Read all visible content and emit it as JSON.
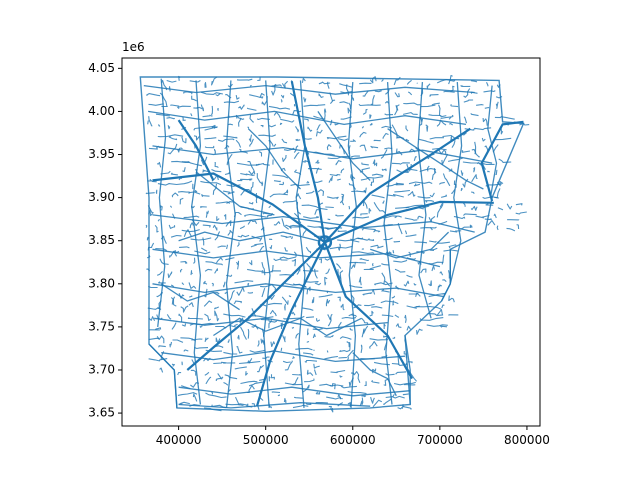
{
  "figure": {
    "background_color": "#ffffff"
  },
  "chart_data": {
    "type": "map",
    "title": "",
    "xlabel": "",
    "ylabel": "",
    "xlim": [
      335000,
      815000
    ],
    "ylim": [
      3635000,
      4062000
    ],
    "grid": false,
    "legend": false,
    "series_color": "#1f77b4",
    "x_ticks": [
      {
        "value": 400000,
        "label": "400000"
      },
      {
        "value": 500000,
        "label": "500000"
      },
      {
        "value": 600000,
        "label": "600000"
      },
      {
        "value": 700000,
        "label": "700000"
      },
      {
        "value": 800000,
        "label": "800000"
      }
    ],
    "y_ticks": [
      {
        "value": 3650000,
        "label": "3.65"
      },
      {
        "value": 3700000,
        "label": "3.70"
      },
      {
        "value": 3750000,
        "label": "3.75"
      },
      {
        "value": 3800000,
        "label": "3.80"
      },
      {
        "value": 3850000,
        "label": "3.85"
      },
      {
        "value": 3900000,
        "label": "3.90"
      },
      {
        "value": 3950000,
        "label": "3.95"
      },
      {
        "value": 4000000,
        "label": "4.00"
      },
      {
        "value": 4050000,
        "label": "4.05"
      }
    ],
    "y_offset_label": "1e6",
    "hub": [
      568000,
      3848000
    ],
    "boundary": [
      [
        360000,
        4040000
      ],
      [
        512000,
        4040000
      ],
      [
        768000,
        4036000
      ],
      [
        772000,
        3988000
      ],
      [
        796000,
        3986000
      ],
      [
        760000,
        3900000
      ],
      [
        752000,
        3860000
      ],
      [
        712000,
        3840000
      ],
      [
        712000,
        3800000
      ],
      [
        702000,
        3780000
      ],
      [
        660000,
        3740000
      ],
      [
        666000,
        3660000
      ],
      [
        620000,
        3656000
      ],
      [
        500000,
        3652000
      ],
      [
        398000,
        3656000
      ],
      [
        395000,
        3700000
      ],
      [
        366000,
        3730000
      ],
      [
        366000,
        3800000
      ],
      [
        366000,
        3900000
      ],
      [
        356000,
        4040000
      ]
    ],
    "major_roads": [
      [
        [
          568000,
          3848000
        ],
        [
          640000,
          3880000
        ],
        [
          700000,
          3895000
        ],
        [
          762000,
          3894000
        ]
      ],
      [
        [
          568000,
          3848000
        ],
        [
          520000,
          3800000
        ],
        [
          480000,
          3760000
        ],
        [
          442000,
          3728000
        ],
        [
          410000,
          3700000
        ]
      ],
      [
        [
          568000,
          3848000
        ],
        [
          620000,
          3905000
        ],
        [
          690000,
          3950000
        ],
        [
          735000,
          3980000
        ]
      ],
      [
        [
          568000,
          3848000
        ],
        [
          592000,
          3785000
        ],
        [
          640000,
          3740000
        ],
        [
          668000,
          3690000
        ]
      ],
      [
        [
          568000,
          3848000
        ],
        [
          508000,
          3892000
        ],
        [
          440000,
          3928000
        ],
        [
          370000,
          3920000
        ]
      ],
      [
        [
          568000,
          3848000
        ],
        [
          560000,
          3900000
        ],
        [
          545000,
          3960000
        ],
        [
          530000,
          4035000
        ]
      ],
      [
        [
          760000,
          3896000
        ],
        [
          748000,
          3940000
        ],
        [
          772000,
          3985000
        ],
        [
          796000,
          3988000
        ]
      ],
      [
        [
          568000,
          3848000
        ],
        [
          530000,
          3770000
        ],
        [
          505000,
          3710000
        ],
        [
          490000,
          3658000
        ]
      ],
      [
        [
          400000,
          3990000
        ],
        [
          420000,
          3960000
        ],
        [
          440000,
          3920000
        ]
      ]
    ],
    "minor_roads": [
      [
        [
          360000,
          4030000
        ],
        [
          420000,
          4022000
        ],
        [
          500000,
          4030000
        ],
        [
          580000,
          4020000
        ],
        [
          660000,
          4028000
        ],
        [
          740000,
          4022000
        ]
      ],
      [
        [
          365000,
          4000000
        ],
        [
          430000,
          3990000
        ],
        [
          510000,
          4000000
        ],
        [
          590000,
          3985000
        ],
        [
          660000,
          3995000
        ],
        [
          730000,
          3985000
        ]
      ],
      [
        [
          370000,
          3960000
        ],
        [
          440000,
          3950000
        ],
        [
          520000,
          3958000
        ],
        [
          600000,
          3945000
        ],
        [
          680000,
          3955000
        ],
        [
          760000,
          3940000
        ]
      ],
      [
        [
          370000,
          3880000
        ],
        [
          450000,
          3870000
        ],
        [
          520000,
          3878000
        ],
        [
          610000,
          3865000
        ],
        [
          690000,
          3872000
        ],
        [
          740000,
          3860000
        ]
      ],
      [
        [
          370000,
          3840000
        ],
        [
          440000,
          3830000
        ],
        [
          500000,
          3838000
        ],
        [
          560000,
          3830000
        ],
        [
          640000,
          3835000
        ],
        [
          700000,
          3820000
        ]
      ],
      [
        [
          370000,
          3800000
        ],
        [
          430000,
          3790000
        ],
        [
          500000,
          3800000
        ],
        [
          580000,
          3790000
        ],
        [
          650000,
          3795000
        ],
        [
          705000,
          3785000
        ]
      ],
      [
        [
          372000,
          3760000
        ],
        [
          430000,
          3752000
        ],
        [
          500000,
          3760000
        ],
        [
          570000,
          3748000
        ],
        [
          640000,
          3755000
        ]
      ],
      [
        [
          380000,
          3720000
        ],
        [
          440000,
          3712000
        ],
        [
          510000,
          3722000
        ],
        [
          580000,
          3710000
        ],
        [
          660000,
          3716000
        ]
      ],
      [
        [
          400000,
          3680000
        ],
        [
          460000,
          3672000
        ],
        [
          530000,
          3680000
        ],
        [
          600000,
          3670000
        ],
        [
          666000,
          3676000
        ]
      ],
      [
        [
          400000,
          3660000
        ],
        [
          460000,
          3656000
        ],
        [
          540000,
          3662000
        ],
        [
          620000,
          3658000
        ]
      ],
      [
        [
          380000,
          4038000
        ],
        [
          385000,
          3970000
        ],
        [
          378000,
          3900000
        ],
        [
          384000,
          3820000
        ],
        [
          376000,
          3750000
        ]
      ],
      [
        [
          420000,
          4036000
        ],
        [
          425000,
          3960000
        ],
        [
          415000,
          3890000
        ],
        [
          425000,
          3810000
        ],
        [
          418000,
          3720000
        ],
        [
          425000,
          3660000
        ]
      ],
      [
        [
          460000,
          4036000
        ],
        [
          455000,
          3960000
        ],
        [
          465000,
          3880000
        ],
        [
          455000,
          3800000
        ],
        [
          462000,
          3720000
        ],
        [
          455000,
          3656000
        ]
      ],
      [
        [
          500000,
          4036000
        ],
        [
          505000,
          3960000
        ],
        [
          495000,
          3880000
        ],
        [
          505000,
          3810000
        ],
        [
          498000,
          3740000
        ],
        [
          504000,
          3656000
        ]
      ],
      [
        [
          540000,
          4036000
        ],
        [
          545000,
          3960000
        ],
        [
          535000,
          3900000
        ],
        [
          545000,
          3810000
        ],
        [
          538000,
          3730000
        ],
        [
          544000,
          3656000
        ]
      ],
      [
        [
          600000,
          4034000
        ],
        [
          595000,
          3960000
        ],
        [
          604000,
          3890000
        ],
        [
          596000,
          3810000
        ],
        [
          603000,
          3740000
        ],
        [
          598000,
          3656000
        ]
      ],
      [
        [
          640000,
          4034000
        ],
        [
          645000,
          3950000
        ],
        [
          636000,
          3870000
        ],
        [
          644000,
          3800000
        ],
        [
          638000,
          3720000
        ],
        [
          645000,
          3660000
        ]
      ],
      [
        [
          680000,
          4034000
        ],
        [
          675000,
          3960000
        ],
        [
          684000,
          3880000
        ],
        [
          676000,
          3810000
        ],
        [
          690000,
          3760000
        ]
      ],
      [
        [
          720000,
          4034000
        ],
        [
          725000,
          3960000
        ],
        [
          716000,
          3900000
        ],
        [
          724000,
          3850000
        ],
        [
          712000,
          3800000
        ]
      ],
      [
        [
          760000,
          4030000
        ],
        [
          755000,
          3980000
        ],
        [
          765000,
          3940000
        ],
        [
          758000,
          3900000
        ]
      ],
      [
        [
          398000,
          3656000
        ],
        [
          395000,
          3700000
        ],
        [
          366000,
          3730000
        ]
      ],
      [
        [
          660000,
          3740000
        ],
        [
          666000,
          3700000
        ],
        [
          666000,
          3660000
        ]
      ],
      [
        [
          712000,
          3840000
        ],
        [
          712000,
          3800000
        ],
        [
          702000,
          3780000
        ]
      ],
      [
        [
          420000,
          3930000
        ],
        [
          445000,
          3910000
        ],
        [
          470000,
          3890000
        ],
        [
          510000,
          3880000
        ]
      ],
      [
        [
          400000,
          3850000
        ],
        [
          430000,
          3860000
        ],
        [
          470000,
          3850000
        ],
        [
          520000,
          3860000
        ],
        [
          560000,
          3850000
        ]
      ],
      [
        [
          620000,
          3840000
        ],
        [
          650000,
          3830000
        ],
        [
          690000,
          3840000
        ],
        [
          710000,
          3860000
        ]
      ],
      [
        [
          440000,
          3740000
        ],
        [
          470000,
          3760000
        ],
        [
          500000,
          3745000
        ],
        [
          540000,
          3760000
        ],
        [
          570000,
          3740000
        ],
        [
          610000,
          3760000
        ]
      ],
      [
        [
          600000,
          3720000
        ],
        [
          620000,
          3700000
        ],
        [
          640000,
          3690000
        ],
        [
          650000,
          3670000
        ]
      ],
      [
        [
          380000,
          3800000
        ],
        [
          410000,
          3780000
        ],
        [
          440000,
          3790000
        ],
        [
          470000,
          3770000
        ]
      ],
      [
        [
          640000,
          3980000
        ],
        [
          670000,
          3960000
        ],
        [
          700000,
          3940000
        ],
        [
          730000,
          3920000
        ],
        [
          750000,
          3910000
        ]
      ],
      [
        [
          560000,
          4000000
        ],
        [
          580000,
          3970000
        ],
        [
          600000,
          3940000
        ],
        [
          620000,
          3920000
        ]
      ],
      [
        [
          480000,
          3980000
        ],
        [
          500000,
          3960000
        ],
        [
          520000,
          3930000
        ],
        [
          540000,
          3910000
        ]
      ]
    ]
  }
}
